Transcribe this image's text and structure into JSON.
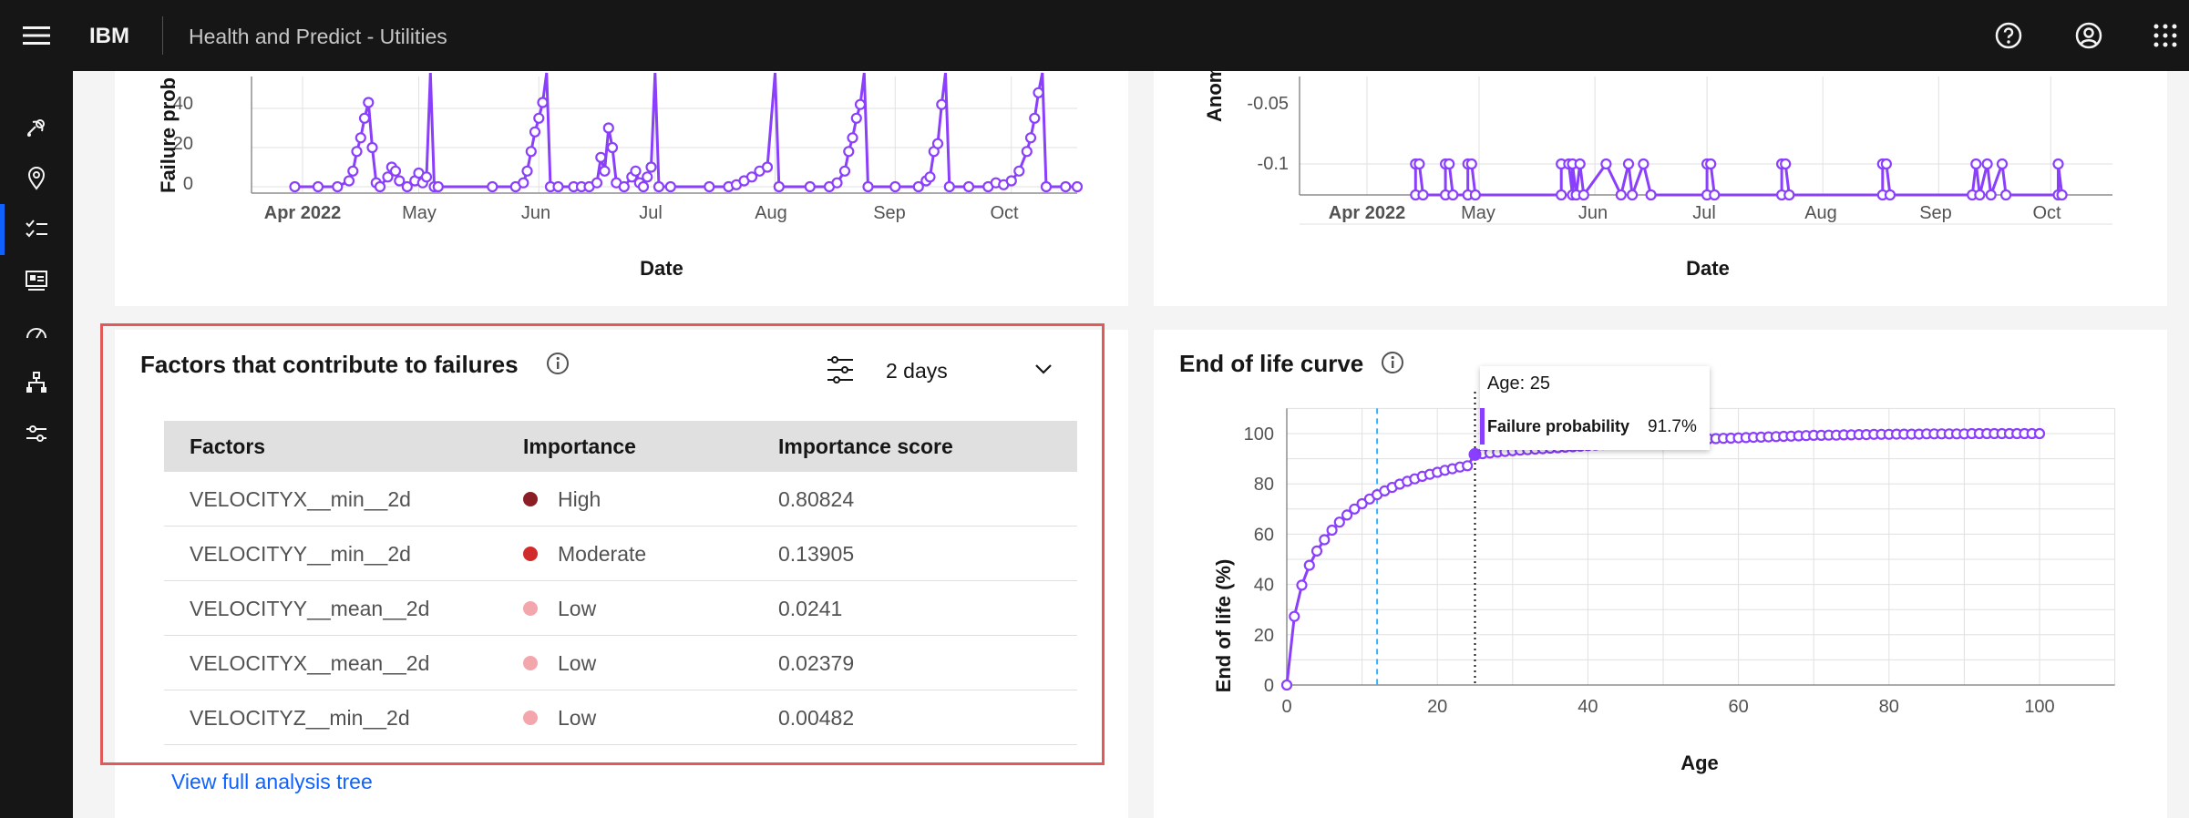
{
  "header": {
    "brand": "IBM",
    "app_title": "Health and Predict - Utilities"
  },
  "sidebar": {
    "icons": [
      "satellite-icon",
      "location-icon",
      "checklist-icon",
      "dashboard-icon",
      "gauge-icon",
      "hierarchy-icon",
      "sliders-icon"
    ],
    "active_index": 2
  },
  "failure_chart": {
    "ylabel": "Failure prob",
    "xlabel": "Date",
    "yticks": [
      "40",
      "20",
      "0"
    ],
    "xticks": [
      "Apr 2022",
      "May",
      "Jun",
      "Jul",
      "Aug",
      "Sep",
      "Oct"
    ]
  },
  "anomaly_chart": {
    "ylabel": "Anom",
    "xlabel": "Date",
    "yticks": [
      "-0.05",
      "-0.1"
    ],
    "xticks": [
      "Apr 2022",
      "May",
      "Jun",
      "Jul",
      "Aug",
      "Sep",
      "Oct"
    ]
  },
  "factors": {
    "title": "Factors that contribute to failures",
    "period": "2 days",
    "columns": [
      "Factors",
      "Importance",
      "Importance score"
    ],
    "rows": [
      {
        "factor": "VELOCITYX__min__2d",
        "importance": "High",
        "score": "0.80824",
        "color": "#8a1e24"
      },
      {
        "factor": "VELOCITYY__min__2d",
        "importance": "Moderate",
        "score": "0.13905",
        "color": "#d22b2b"
      },
      {
        "factor": "VELOCITYY__mean__2d",
        "importance": "Low",
        "score": "0.0241",
        "color": "#f4a6ad"
      },
      {
        "factor": "VELOCITYX__mean__2d",
        "importance": "Low",
        "score": "0.02379",
        "color": "#f4a6ad"
      },
      {
        "factor": "VELOCITYZ__min__2d",
        "importance": "Low",
        "score": "0.00482",
        "color": "#f4a6ad"
      }
    ],
    "link": "View full analysis tree"
  },
  "eol": {
    "title": "End of life curve",
    "tooltip": {
      "age": "Age: 25",
      "label": "Failure probability",
      "value": "91.7%"
    }
  },
  "chart_data": [
    {
      "type": "line",
      "title": "",
      "xlabel": "Date",
      "ylabel": "Failure prob",
      "x_ticks": [
        "Apr 2022",
        "May",
        "Jun",
        "Jul",
        "Aug",
        "Sep",
        "Oct"
      ],
      "ylim": [
        0,
        50
      ],
      "points": [
        [
          "2022-03-30",
          0
        ],
        [
          "2022-04-05",
          0
        ],
        [
          "2022-04-10",
          0
        ],
        [
          "2022-04-13",
          3
        ],
        [
          "2022-04-14",
          8
        ],
        [
          "2022-04-15",
          18
        ],
        [
          "2022-04-16",
          25
        ],
        [
          "2022-04-17",
          35
        ],
        [
          "2022-04-18",
          43
        ],
        [
          "2022-04-19",
          20
        ],
        [
          "2022-04-20",
          2
        ],
        [
          "2022-04-21",
          0
        ],
        [
          "2022-04-23",
          5
        ],
        [
          "2022-04-24",
          10
        ],
        [
          "2022-04-25",
          8
        ],
        [
          "2022-04-26",
          3
        ],
        [
          "2022-04-28",
          0
        ],
        [
          "2022-04-30",
          3
        ],
        [
          "2022-05-01",
          7
        ],
        [
          "2022-05-02",
          2
        ],
        [
          "2022-05-03",
          5
        ],
        [
          "2022-05-04",
          60
        ],
        [
          "2022-05-05",
          0
        ],
        [
          "2022-05-06",
          0
        ],
        [
          "2022-05-20",
          0
        ],
        [
          "2022-05-26",
          0
        ],
        [
          "2022-05-28",
          2
        ],
        [
          "2022-05-29",
          8
        ],
        [
          "2022-05-30",
          18
        ],
        [
          "2022-05-31",
          28
        ],
        [
          "2022-06-01",
          35
        ],
        [
          "2022-06-02",
          43
        ],
        [
          "2022-06-03",
          60
        ],
        [
          "2022-06-04",
          0
        ],
        [
          "2022-06-06",
          0
        ],
        [
          "2022-06-10",
          0
        ],
        [
          "2022-06-12",
          0
        ],
        [
          "2022-06-14",
          0
        ],
        [
          "2022-06-16",
          2
        ],
        [
          "2022-06-17",
          15
        ],
        [
          "2022-06-18",
          8
        ],
        [
          "2022-06-19",
          30
        ],
        [
          "2022-06-20",
          20
        ],
        [
          "2022-06-21",
          2
        ],
        [
          "2022-06-23",
          0
        ],
        [
          "2022-06-25",
          5
        ],
        [
          "2022-06-26",
          8
        ],
        [
          "2022-06-27",
          2
        ],
        [
          "2022-06-28",
          0
        ],
        [
          "2022-06-29",
          5
        ],
        [
          "2022-06-30",
          10
        ],
        [
          "2022-07-01",
          60
        ],
        [
          "2022-07-02",
          0
        ],
        [
          "2022-07-05",
          0
        ],
        [
          "2022-07-15",
          0
        ],
        [
          "2022-07-20",
          0
        ],
        [
          "2022-07-22",
          1
        ],
        [
          "2022-07-24",
          3
        ],
        [
          "2022-07-26",
          5
        ],
        [
          "2022-07-28",
          8
        ],
        [
          "2022-07-30",
          10
        ],
        [
          "2022-08-01",
          60
        ],
        [
          "2022-08-02",
          0
        ],
        [
          "2022-08-10",
          0
        ],
        [
          "2022-08-15",
          0
        ],
        [
          "2022-08-17",
          2
        ],
        [
          "2022-08-19",
          8
        ],
        [
          "2022-08-20",
          18
        ],
        [
          "2022-08-21",
          25
        ],
        [
          "2022-08-22",
          35
        ],
        [
          "2022-08-23",
          42
        ],
        [
          "2022-08-24",
          60
        ],
        [
          "2022-08-25",
          0
        ],
        [
          "2022-09-01",
          0
        ],
        [
          "2022-09-07",
          0
        ],
        [
          "2022-09-09",
          3
        ],
        [
          "2022-09-10",
          5
        ],
        [
          "2022-09-11",
          18
        ],
        [
          "2022-09-12",
          22
        ],
        [
          "2022-09-13",
          42
        ],
        [
          "2022-09-14",
          60
        ],
        [
          "2022-09-15",
          0
        ],
        [
          "2022-09-20",
          0
        ],
        [
          "2022-09-25",
          0
        ],
        [
          "2022-09-27",
          2
        ],
        [
          "2022-09-29",
          1
        ],
        [
          "2022-10-01",
          3
        ],
        [
          "2022-10-03",
          8
        ],
        [
          "2022-10-05",
          18
        ],
        [
          "2022-10-06",
          25
        ],
        [
          "2022-10-07",
          35
        ],
        [
          "2022-10-08",
          48
        ],
        [
          "2022-10-09",
          60
        ],
        [
          "2022-10-10",
          0
        ],
        [
          "2022-10-15",
          0
        ],
        [
          "2022-10-20",
          0
        ]
      ]
    },
    {
      "type": "line",
      "title": "",
      "xlabel": "Date",
      "ylabel": "Anom",
      "x_ticks": [
        "Apr 2022",
        "May",
        "Jun",
        "Jul",
        "Aug",
        "Sep",
        "Oct"
      ],
      "ylim": [
        -0.12,
        -0.02
      ],
      "points": [
        [
          "2022-04-14",
          0
        ],
        [
          "2022-04-14",
          -0.1
        ],
        [
          "2022-04-15",
          -0.1
        ],
        [
          "2022-04-16",
          0
        ],
        [
          "2022-04-22",
          0
        ],
        [
          "2022-04-22",
          -0.1
        ],
        [
          "2022-04-23",
          -0.1
        ],
        [
          "2022-04-24",
          0
        ],
        [
          "2022-04-28",
          0
        ],
        [
          "2022-04-28",
          -0.1
        ],
        [
          "2022-04-29",
          -0.1
        ],
        [
          "2022-04-30",
          0
        ],
        [
          "2022-05-23",
          0
        ],
        [
          "2022-05-23",
          -0.1
        ],
        [
          "2022-05-25",
          -0.1
        ],
        [
          "2022-05-26",
          0
        ],
        [
          "2022-05-26",
          -0.1
        ],
        [
          "2022-05-27",
          0
        ],
        [
          "2022-05-28",
          -0.1
        ],
        [
          "2022-05-29",
          0
        ],
        [
          "2022-06-04",
          -0.1
        ],
        [
          "2022-06-08",
          0
        ],
        [
          "2022-06-10",
          -0.1
        ],
        [
          "2022-06-11",
          0
        ],
        [
          "2022-06-14",
          -0.1
        ],
        [
          "2022-06-16",
          0
        ],
        [
          "2022-07-01",
          0
        ],
        [
          "2022-07-01",
          -0.1
        ],
        [
          "2022-07-02",
          -0.1
        ],
        [
          "2022-07-03",
          0
        ],
        [
          "2022-07-21",
          0
        ],
        [
          "2022-07-21",
          -0.1
        ],
        [
          "2022-07-22",
          -0.1
        ],
        [
          "2022-07-23",
          0
        ],
        [
          "2022-08-17",
          0
        ],
        [
          "2022-08-17",
          -0.1
        ],
        [
          "2022-08-18",
          -0.1
        ],
        [
          "2022-08-19",
          0
        ],
        [
          "2022-09-10",
          0
        ],
        [
          "2022-09-11",
          -0.1
        ],
        [
          "2022-09-12",
          0
        ],
        [
          "2022-09-14",
          -0.1
        ],
        [
          "2022-09-15",
          0
        ],
        [
          "2022-09-18",
          -0.1
        ],
        [
          "2022-09-19",
          0
        ],
        [
          "2022-10-03",
          0
        ],
        [
          "2022-10-03",
          -0.1
        ],
        [
          "2022-10-04",
          0
        ]
      ]
    },
    {
      "type": "line",
      "title": "End of life curve",
      "xlabel": "Age",
      "ylabel": "End of life (%)",
      "xlim": [
        0,
        110
      ],
      "ylim": [
        0,
        110
      ],
      "x_ticks": [
        0,
        20,
        40,
        60,
        80,
        100
      ],
      "y_ticks": [
        0,
        20,
        40,
        60,
        80,
        100
      ],
      "x": [
        0,
        1,
        2,
        3,
        4,
        5,
        6,
        7,
        8,
        9,
        10,
        11,
        12,
        13,
        14,
        15,
        16,
        17,
        18,
        19,
        20,
        21,
        22,
        23,
        24,
        25,
        26,
        27,
        28,
        29,
        30,
        31,
        32,
        33,
        34,
        35,
        36,
        37,
        38,
        39,
        40,
        41,
        42,
        43,
        44,
        45,
        46,
        47,
        48,
        49,
        50,
        51,
        52,
        53,
        54,
        55,
        56,
        57,
        58,
        59,
        60,
        61,
        62,
        63,
        64,
        65,
        66,
        67,
        68,
        69,
        70,
        71,
        72,
        73,
        74,
        75,
        76,
        77,
        78,
        79,
        80,
        81,
        82,
        83,
        84,
        85,
        86,
        87,
        88,
        89,
        90,
        91,
        92,
        93,
        94,
        95,
        96,
        97,
        98,
        99,
        100
      ],
      "y": [
        0,
        27.3,
        39.7,
        47.6,
        53.3,
        57.8,
        61.6,
        64.8,
        67.6,
        70.0,
        72.1,
        74.0,
        75.7,
        77.2,
        78.6,
        79.9,
        81.0,
        82.0,
        83.0,
        83.8,
        84.6,
        85.4,
        86.0,
        86.7,
        87.2,
        91.7,
        92.0,
        92.3,
        92.6,
        92.9,
        93.2,
        93.4,
        93.6,
        93.8,
        94.0,
        94.2,
        94.4,
        94.6,
        94.8,
        95.0,
        95.2,
        95.4,
        95.6,
        95.8,
        96.0,
        96.2,
        96.4,
        96.6,
        96.8,
        97.0,
        97.2,
        97.4,
        97.5,
        97.6,
        97.7,
        97.8,
        97.9,
        98.0,
        98.1,
        98.2,
        98.3,
        98.4,
        98.5,
        98.6,
        98.7,
        98.8,
        98.9,
        99.0,
        99.1,
        99.2,
        99.3,
        99.3,
        99.4,
        99.4,
        99.5,
        99.5,
        99.6,
        99.6,
        99.7,
        99.7,
        99.7,
        99.8,
        99.8,
        99.8,
        99.8,
        99.9,
        99.9,
        99.9,
        99.9,
        99.9,
        99.9,
        100,
        100,
        100,
        100,
        100,
        100,
        100,
        100,
        100,
        100
      ],
      "markers": [
        {
          "x": 12,
          "style": "dashed",
          "color": "#33b1ff"
        },
        {
          "x": 25,
          "style": "dotted",
          "color": "#161616"
        }
      ]
    }
  ]
}
